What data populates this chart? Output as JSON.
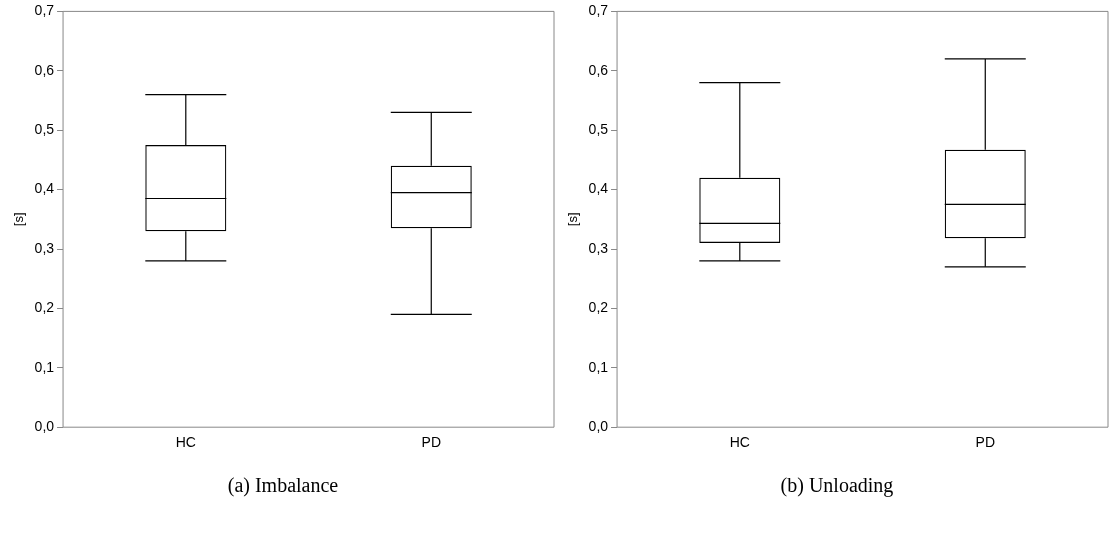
{
  "chart_data": [
    {
      "type": "box",
      "title": "(a) Imbalance",
      "ylabel": "[s]",
      "categories": [
        "HC",
        "PD"
      ],
      "ylim": [
        0,
        0.7
      ],
      "yticks": [
        {
          "value": 0,
          "label": "0,0"
        },
        {
          "value": 0.1,
          "label": "0,1"
        },
        {
          "value": 0.2,
          "label": "0,2"
        },
        {
          "value": 0.3,
          "label": "0,3"
        },
        {
          "value": 0.4,
          "label": "0,4"
        },
        {
          "value": 0.5,
          "label": "0,5"
        },
        {
          "value": 0.6,
          "label": "0,6"
        },
        {
          "value": 0.7,
          "label": "0,7"
        }
      ],
      "grid": false,
      "legend": false,
      "boxes": [
        {
          "low": 0.28,
          "q1": 0.33,
          "median": 0.385,
          "q3": 0.475,
          "high": 0.56
        },
        {
          "low": 0.19,
          "q1": 0.335,
          "median": 0.395,
          "q3": 0.44,
          "high": 0.53
        }
      ]
    },
    {
      "type": "box",
      "title": "(b) Unloading",
      "ylabel": "[s]",
      "categories": [
        "HC",
        "PD"
      ],
      "ylim": [
        0,
        0.7
      ],
      "yticks": [
        {
          "value": 0,
          "label": "0,0"
        },
        {
          "value": 0.1,
          "label": "0,1"
        },
        {
          "value": 0.2,
          "label": "0,2"
        },
        {
          "value": 0.3,
          "label": "0,3"
        },
        {
          "value": 0.4,
          "label": "0,4"
        },
        {
          "value": 0.5,
          "label": "0,5"
        },
        {
          "value": 0.6,
          "label": "0,6"
        },
        {
          "value": 0.7,
          "label": "0,7"
        }
      ],
      "grid": false,
      "legend": false,
      "boxes": [
        {
          "low": 0.28,
          "q1": 0.31,
          "median": 0.343,
          "q3": 0.42,
          "high": 0.58
        },
        {
          "low": 0.27,
          "q1": 0.318,
          "median": 0.375,
          "q3": 0.467,
          "high": 0.62
        }
      ]
    }
  ]
}
